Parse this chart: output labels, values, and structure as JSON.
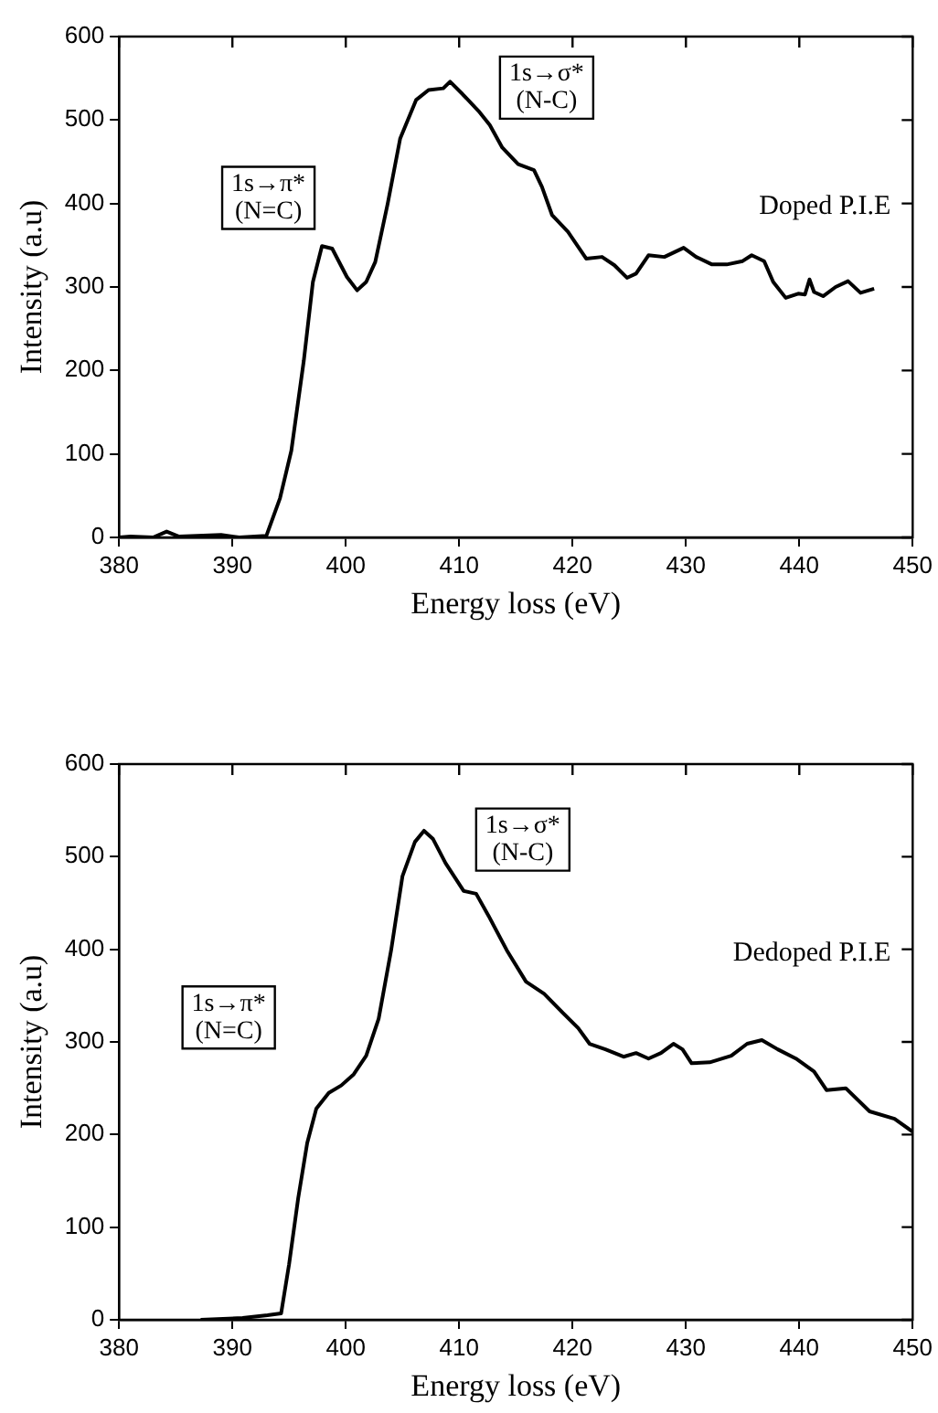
{
  "chart_data": [
    {
      "type": "line",
      "xlabel": "Energy loss (eV)",
      "ylabel": "Intensity (a.u)",
      "xlim": [
        380,
        450
      ],
      "ylim": [
        0,
        600
      ],
      "xticks": [
        380,
        390,
        400,
        410,
        420,
        430,
        440,
        450
      ],
      "yticks": [
        0,
        100,
        200,
        300,
        400,
        500,
        600
      ],
      "grid": false,
      "legend": "right",
      "marker": "none",
      "line_style": "solid",
      "annotations": [
        "1s→π*\n(N=C)",
        "1s→σ*\n(N-C)"
      ],
      "series": [
        {
          "name": "Doped P.I.E",
          "color": "#000000",
          "x": [
            380,
            381,
            383,
            384.2,
            385.3,
            389,
            390.6,
            393,
            394.2,
            395.2,
            396.3,
            397.1,
            397.9,
            398.8,
            400.1,
            401,
            401.8,
            402.6,
            403.7,
            404.8,
            406.2,
            407.3,
            408.6,
            409.2,
            410.3,
            411.7,
            412.7,
            413.8,
            415.2,
            416.6,
            417.3,
            418.2,
            419.6,
            421.2,
            422.6,
            423.7,
            424.8,
            425.6,
            426.7,
            428.1,
            429.8,
            430.9,
            432.3,
            433.6,
            435,
            435.8,
            436.9,
            437.7,
            438.8,
            439.9,
            440.5,
            440.9,
            441.3,
            442.1,
            443.2,
            444.3,
            445.4,
            446.6
          ],
          "values": [
            0,
            1,
            0,
            7,
            1,
            3,
            0,
            2,
            47,
            104,
            212,
            306,
            349,
            346,
            312,
            296,
            306,
            330,
            400,
            478,
            524,
            536,
            538,
            546,
            531,
            511,
            494,
            467,
            447,
            440,
            420,
            386,
            366,
            334,
            336,
            326,
            311,
            316,
            338,
            336,
            347,
            336,
            327,
            327,
            331,
            338,
            331,
            306,
            287,
            292,
            291,
            309,
            294,
            289,
            300,
            307,
            293,
            298
          ]
        }
      ]
    },
    {
      "type": "line",
      "xlabel": "Energy loss (eV)",
      "ylabel": "Intensity (a.u)",
      "xlim": [
        380,
        450
      ],
      "ylim": [
        0,
        600
      ],
      "xticks": [
        380,
        390,
        400,
        410,
        420,
        430,
        440,
        450
      ],
      "yticks": [
        0,
        100,
        200,
        300,
        400,
        500,
        600
      ],
      "grid": false,
      "legend": "right",
      "marker": "none",
      "line_style": "solid",
      "annotations": [
        "1s→π*\n(N=C)",
        "1s→σ*\n(N-C)"
      ],
      "series": [
        {
          "name": "Dedoped P.I.E",
          "color": "#000000",
          "x": [
            387.2,
            390.9,
            393.1,
            394.3,
            395,
            395.8,
            396.6,
            397.4,
            398.5,
            399.6,
            400.7,
            401.8,
            402.9,
            404,
            405,
            406.1,
            406.9,
            407.7,
            408.8,
            410.4,
            411.5,
            412.6,
            414.2,
            415.9,
            417.5,
            419.1,
            420.5,
            421.5,
            422.9,
            424.5,
            425.6,
            426.7,
            427.8,
            428.9,
            429.7,
            430.5,
            432.1,
            434,
            435.4,
            436.7,
            438.1,
            439.7,
            441.3,
            442.4,
            444.1,
            446.2,
            448.4,
            450
          ],
          "values": [
            0,
            2,
            5,
            7,
            60,
            131,
            191,
            228,
            245,
            253,
            265,
            285,
            325,
            399,
            479,
            516,
            528,
            519,
            493,
            463,
            460,
            436,
            399,
            365,
            352,
            332,
            315,
            298,
            292,
            284,
            288,
            282,
            288,
            298,
            292,
            277,
            278,
            285,
            298,
            302,
            292,
            282,
            268,
            248,
            250,
            225,
            217,
            203
          ]
        }
      ]
    }
  ]
}
